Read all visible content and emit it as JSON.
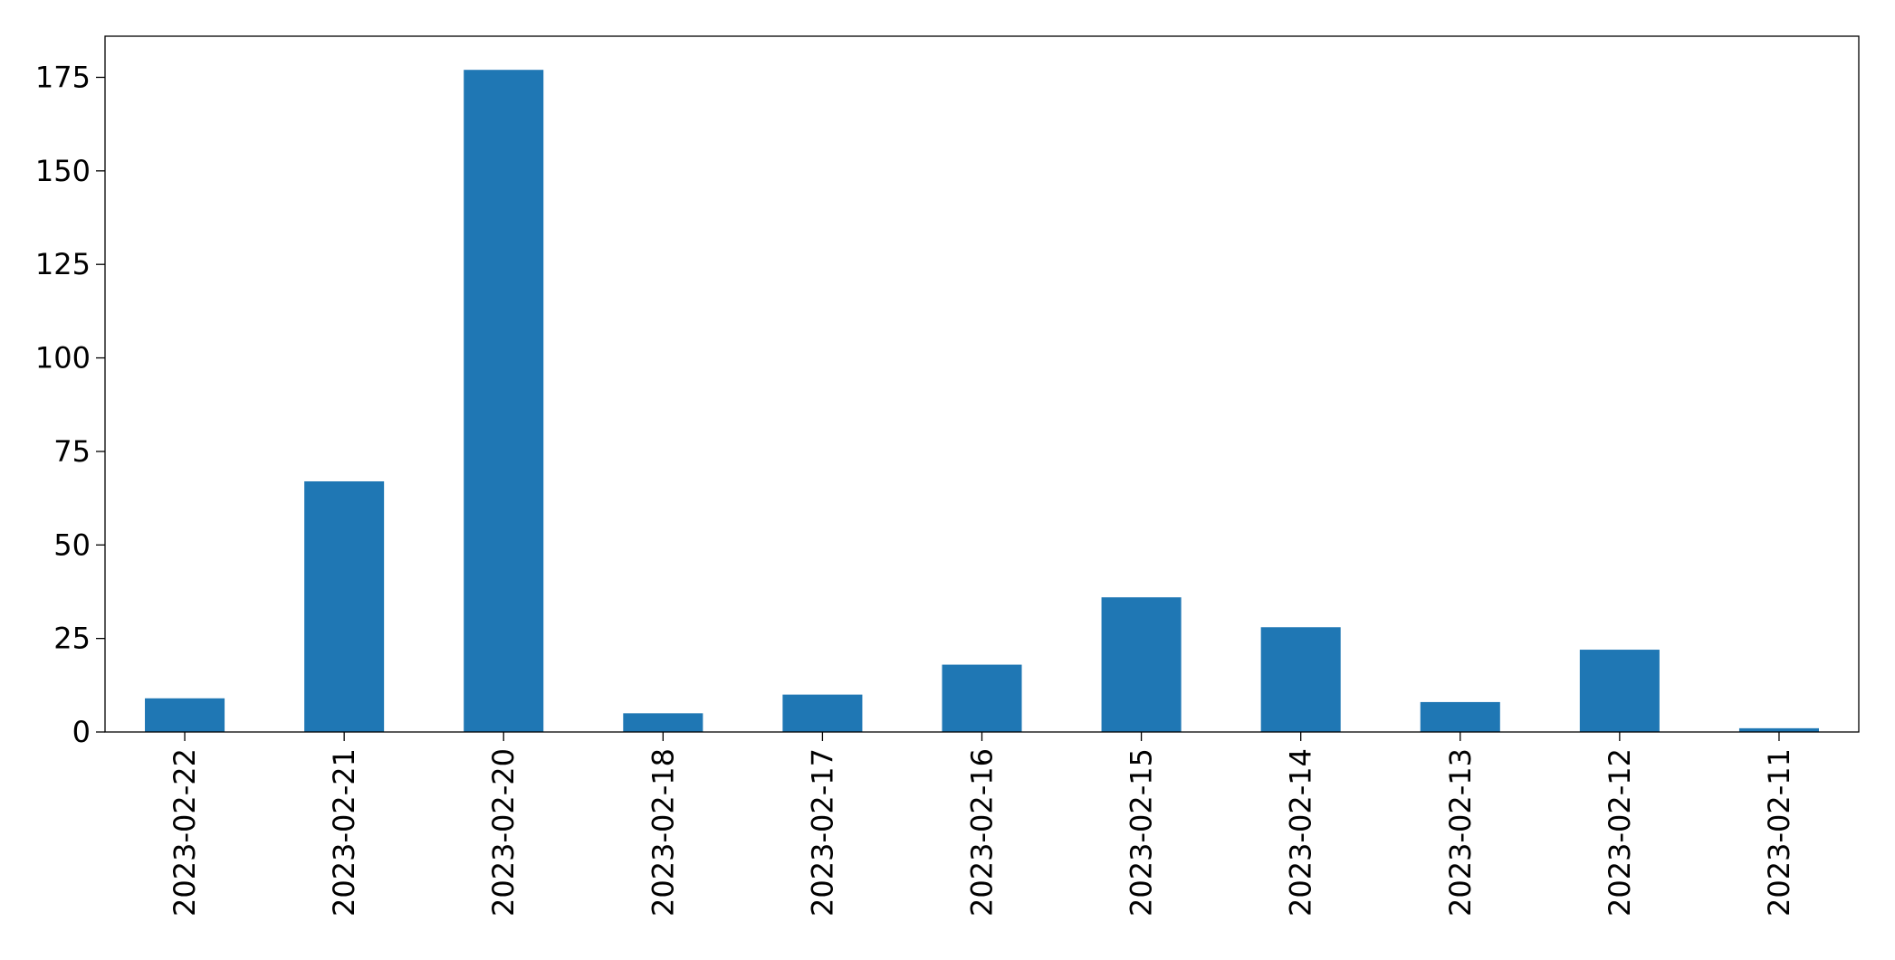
{
  "chart_data": {
    "type": "bar",
    "categories": [
      "2023-02-22",
      "2023-02-21",
      "2023-02-20",
      "2023-02-18",
      "2023-02-17",
      "2023-02-16",
      "2023-02-15",
      "2023-02-14",
      "2023-02-13",
      "2023-02-12",
      "2023-02-11"
    ],
    "values": [
      9,
      67,
      177,
      5,
      10,
      18,
      36,
      28,
      8,
      22,
      1
    ],
    "color": "#1f77b4",
    "ylim": [
      0,
      186
    ],
    "yticks": [
      0,
      25,
      50,
      75,
      100,
      125,
      150,
      175
    ],
    "grid": false
  }
}
